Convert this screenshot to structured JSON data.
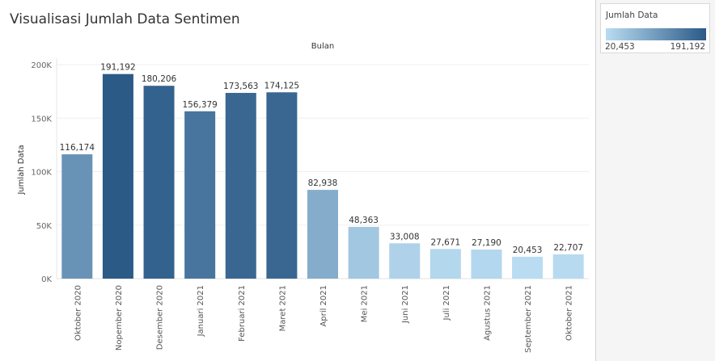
{
  "chart_data": {
    "type": "bar",
    "title": "Visualisasi Jumlah Data Sentimen",
    "xlabel": "Bulan",
    "ylabel": "Jumlah Data",
    "ylim": [
      0,
      200000
    ],
    "yticks": [
      {
        "value": 0,
        "label": "0K"
      },
      {
        "value": 50000,
        "label": "50K"
      },
      {
        "value": 100000,
        "label": "100K"
      },
      {
        "value": 150000,
        "label": "150K"
      },
      {
        "value": 200000,
        "label": "200K"
      }
    ],
    "grid": true,
    "categories": [
      "Oktober 2020",
      "Nopember 2020",
      "Desember 2020",
      "Januari 2021",
      "Februari 2021",
      "Maret 2021",
      "April 2021",
      "Mei 2021",
      "Juni 2021",
      "Juli 2021",
      "Agustus 2021",
      "September 2021",
      "Oktober 2021"
    ],
    "values": [
      116174,
      191192,
      180206,
      156379,
      173563,
      174125,
      82938,
      48363,
      33008,
      27671,
      27190,
      20453,
      22707
    ],
    "value_labels": [
      "116,174",
      "191,192",
      "180,206",
      "156,379",
      "173,563",
      "174,125",
      "82,938",
      "48,363",
      "33,008",
      "27,671",
      "27,190",
      "20,453",
      "22,707"
    ]
  },
  "legend": {
    "title": "Jumlah Data",
    "min_label": "20,453",
    "max_label": "191,192",
    "min_value": 20453,
    "max_value": 191192,
    "color_low": "#b9dcf2",
    "color_high": "#2b5a87"
  }
}
